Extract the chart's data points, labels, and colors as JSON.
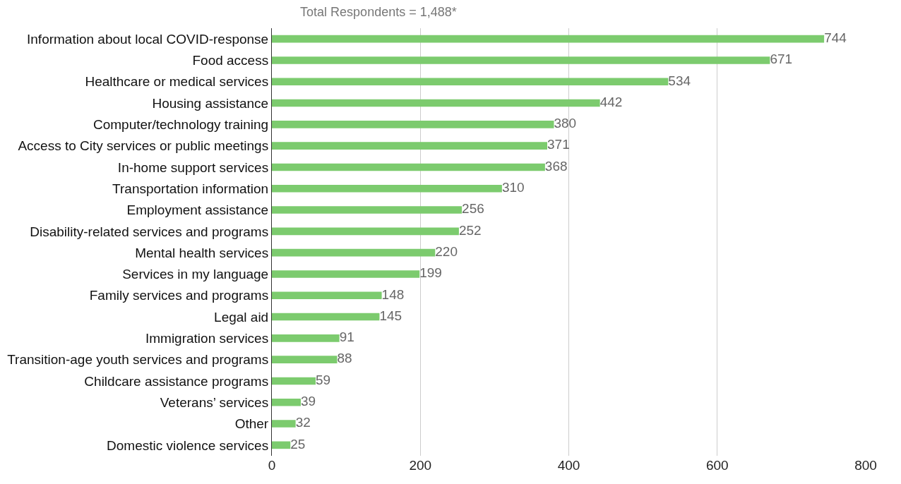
{
  "chart_data": {
    "type": "bar",
    "orientation": "horizontal",
    "title": "Total Respondents = 1,488*",
    "categories": [
      "Information about local COVID-response",
      "Food access",
      "Healthcare or medical services",
      "Housing assistance",
      "Computer/technology training",
      "Access to City services or public meetings",
      "In-home support services",
      "Transportation information",
      "Employment assistance",
      "Disability-related services and programs",
      "Mental health services",
      "Services in my language",
      "Family services and programs",
      "Legal aid",
      "Immigration services",
      "Transition-age youth services and programs",
      "Childcare assistance programs",
      "Veterans’ services",
      "Other",
      "Domestic violence services"
    ],
    "values": [
      744,
      671,
      534,
      442,
      380,
      371,
      368,
      310,
      256,
      252,
      220,
      199,
      148,
      145,
      91,
      88,
      59,
      39,
      32,
      25
    ],
    "color": "#7ccb6e",
    "xlim": [
      0,
      800
    ],
    "xticks": [
      0,
      200,
      400,
      600,
      800
    ],
    "grid": "x",
    "data_labels": true
  }
}
